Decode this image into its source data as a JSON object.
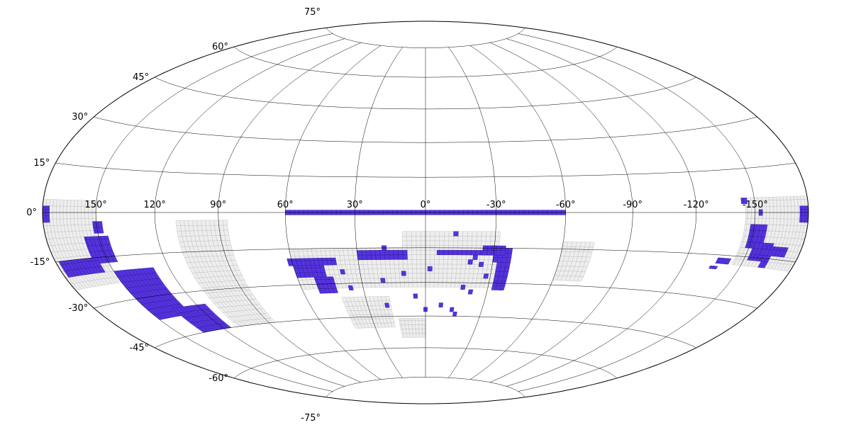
{
  "chart_data": {
    "type": "map",
    "projection": "hammer-aitoff (galactic-style, longitude increasing to the left)",
    "grid": true,
    "lon_tick_labels": [
      "150°",
      "120°",
      "90°",
      "60°",
      "30°",
      "0°",
      "-30°",
      "-60°",
      "-90°",
      "-120°",
      "-150°"
    ],
    "lat_tick_labels": [
      "75°",
      "60°",
      "45°",
      "30°",
      "15°",
      "0°",
      "-15°",
      "-30°",
      "-45°",
      "-60°",
      "-75°"
    ],
    "lon_range": [
      -180,
      180
    ],
    "lat_range": [
      -90,
      90
    ],
    "colors": {
      "observed_field": "#5533dd",
      "observed_edge": "#2a1699",
      "survey_field": "#eeeeee",
      "survey_edge": "#bbbbbb",
      "grid": "#000000"
    },
    "survey_regions": [
      {
        "name": "",
        "lon": [
          150,
          180
        ],
        "lat": [
          -24,
          4
        ]
      },
      {
        "name": "",
        "lon": [
          -180,
          -145
        ],
        "lat": [
          -18,
          5
        ]
      },
      {
        "name": "",
        "lon": [
          86,
          110
        ],
        "lat": [
          -45,
          -3
        ]
      },
      {
        "name": "",
        "lon": [
          -32,
          10
        ],
        "lat": [
          -32,
          -8
        ]
      },
      {
        "name": "",
        "lon": [
          10,
          60
        ],
        "lat": [
          -32,
          -15
        ]
      },
      {
        "name": "",
        "lon": [
          -74,
          -60
        ],
        "lat": [
          -28,
          -12
        ]
      },
      {
        "name": "",
        "lon": [
          18,
          42
        ],
        "lat": [
          -50,
          -36
        ]
      },
      {
        "name": "",
        "lon": [
          0,
          15
        ],
        "lat": [
          -55,
          -46
        ]
      }
    ],
    "observed_regions": [
      {
        "lon": [
          -60,
          60
        ],
        "lat": [
          -1,
          1
        ]
      },
      {
        "lon": [
          176,
          180
        ],
        "lat": [
          -3,
          2
        ]
      },
      {
        "lon": [
          -180,
          -175
        ],
        "lat": [
          -3,
          2
        ]
      },
      {
        "lon": [
          147,
          152
        ],
        "lat": [
          -7,
          -3
        ]
      },
      {
        "lon": [
          145,
          158
        ],
        "lat": [
          -17,
          -8
        ]
      },
      {
        "lon": [
          155,
          178
        ],
        "lat": [
          -20,
          -15
        ]
      },
      {
        "lon": [
          128,
          150
        ],
        "lat": [
          -38,
          -20
        ]
      },
      {
        "lon": [
          115,
          135
        ],
        "lat": [
          -45,
          -35
        ]
      },
      {
        "lon": [
          -157,
          -148
        ],
        "lat": [
          -12,
          -4
        ]
      },
      {
        "lon": [
          -163,
          -152
        ],
        "lat": [
          -16,
          -10
        ]
      },
      {
        "lon": [
          -172,
          -158
        ],
        "lat": [
          -14,
          -11
        ]
      },
      {
        "lon": [
          -164,
          -160
        ],
        "lat": [
          -18,
          -14
        ]
      },
      {
        "lon": [
          -154,
          -152
        ],
        "lat": [
          -1,
          1
        ]
      },
      {
        "lon": [
          -146,
          -143
        ],
        "lat": [
          3,
          5
        ]
      },
      {
        "lon": [
          -143,
          -136
        ],
        "lat": [
          -18,
          -16
        ]
      },
      {
        "lon": [
          -138,
          -134
        ],
        "lat": [
          -20,
          -19
        ]
      },
      {
        "lon": [
          40,
          62
        ],
        "lat": [
          -22,
          -19
        ]
      },
      {
        "lon": [
          46,
          60
        ],
        "lat": [
          -27,
          -22
        ]
      },
      {
        "lon": [
          43,
          52
        ],
        "lat": [
          -34,
          -27
        ]
      },
      {
        "lon": [
          8,
          30
        ],
        "lat": [
          -20,
          -16
        ]
      },
      {
        "lon": [
          -32,
          -5
        ],
        "lat": [
          -18,
          -16
        ]
      },
      {
        "lon": [
          -38,
          -30
        ],
        "lat": [
          -21,
          -15
        ]
      },
      {
        "lon": [
          -38,
          -32
        ],
        "lat": [
          -33,
          -21
        ]
      },
      {
        "lon": [
          -35,
          -25
        ],
        "lat": [
          -18,
          -14
        ]
      }
    ],
    "observed_points": [
      [
        -13,
        -9
      ],
      [
        20,
        -29
      ],
      [
        10,
        -26
      ],
      [
        -22,
        -19
      ],
      [
        18,
        -15
      ],
      [
        -28,
        -27
      ],
      [
        -2,
        -24
      ],
      [
        -25,
        -22
      ],
      [
        -20,
        -21
      ],
      [
        5,
        -36
      ],
      [
        -22,
        -34
      ],
      [
        -18,
        -32
      ],
      [
        -8,
        -40
      ],
      [
        0,
        -42
      ],
      [
        38,
        -25
      ],
      [
        36,
        -32
      ],
      [
        20,
        -40
      ],
      [
        -16,
        -44
      ],
      [
        -14,
        -42
      ],
      [
        -30,
        -15
      ]
    ]
  }
}
